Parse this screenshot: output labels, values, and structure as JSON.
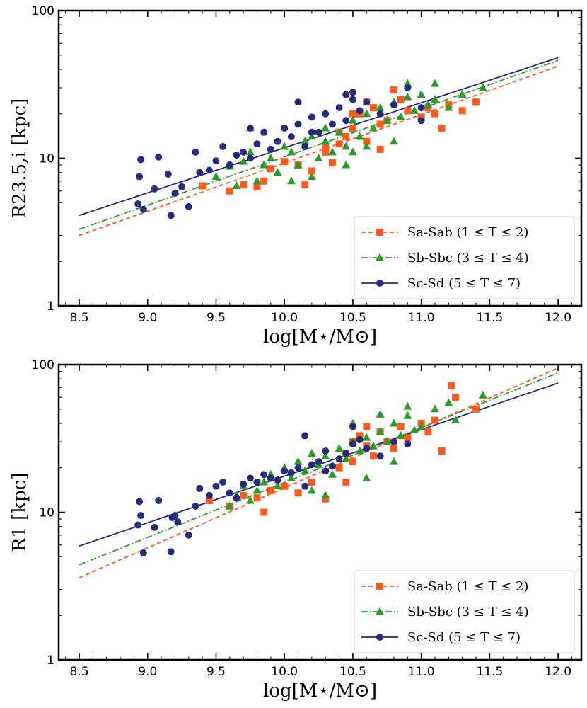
{
  "colors": {
    "sa": "#ff5a1f",
    "sb": "#2e9a2e",
    "sc": "#262b7a"
  },
  "legend": [
    {
      "key": "sa",
      "name": "Sa-Sab (1 ≤ T ≤ 2)",
      "marker": "square",
      "dash": "6,4"
    },
    {
      "key": "sb",
      "name": "Sb-Sbc (3 ≤ T ≤ 4)",
      "marker": "triangle",
      "dash": "9,3,2,3"
    },
    {
      "key": "sc",
      "name": "Sc-Sd (5 ≤ T ≤ 7)",
      "marker": "circle",
      "dash": ""
    }
  ],
  "chart_data": [
    {
      "type": "scatter",
      "ylabel": "R23.5,i [kpc]",
      "xlabel": "log[M⋆/M⊙]",
      "xlim": [
        8.35,
        12.17
      ],
      "ylim": [
        1,
        100
      ],
      "yscale": "log",
      "xticks": [
        8.5,
        9.0,
        9.5,
        10.0,
        10.5,
        11.0,
        11.5,
        12.0
      ],
      "xtick_labels": [
        "8.5",
        "9.0",
        "9.5",
        "10.0",
        "10.5",
        "11.0",
        "11.5",
        "12.0"
      ],
      "yticks": [
        1,
        10,
        100
      ],
      "ytick_labels": [
        "1",
        "10",
        "100"
      ],
      "legend_position": "lower-right",
      "fits": {
        "sa": [
          [
            8.5,
            3.0
          ],
          [
            12.0,
            42
          ]
        ],
        "sb": [
          [
            8.5,
            3.3
          ],
          [
            12.0,
            46
          ]
        ],
        "sc": [
          [
            8.5,
            4.1
          ],
          [
            12.0,
            48
          ]
        ]
      },
      "series": [
        {
          "key": "sa",
          "points": [
            [
              9.4,
              6.5
            ],
            [
              9.6,
              6.0
            ],
            [
              9.7,
              6.6
            ],
            [
              9.8,
              6.4
            ],
            [
              9.85,
              7.0
            ],
            [
              9.9,
              8.5
            ],
            [
              10.0,
              9.5
            ],
            [
              10.1,
              9.0
            ],
            [
              10.15,
              6.6
            ],
            [
              10.2,
              8.2
            ],
            [
              10.3,
              11.0
            ],
            [
              10.35,
              9.3
            ],
            [
              10.4,
              12.5
            ],
            [
              10.45,
              14.0
            ],
            [
              10.5,
              16.0
            ],
            [
              10.55,
              20.0
            ],
            [
              10.6,
              13.0
            ],
            [
              10.65,
              22.0
            ],
            [
              10.7,
              11.5
            ],
            [
              10.75,
              18.0
            ],
            [
              10.8,
              29.0
            ],
            [
              10.85,
              25.0
            ],
            [
              10.9,
              21.0
            ],
            [
              11.0,
              19.0
            ],
            [
              11.05,
              22.0
            ],
            [
              11.1,
              20.0
            ],
            [
              11.15,
              16.0
            ],
            [
              11.2,
              23.0
            ],
            [
              11.3,
              21.0
            ],
            [
              11.4,
              24.0
            ],
            [
              10.6,
              24.0
            ],
            [
              10.5,
              20.0
            ],
            [
              10.4,
              15.0
            ],
            [
              10.7,
              17.0
            ],
            [
              10.3,
              12.0
            ]
          ]
        },
        {
          "key": "sb",
          "points": [
            [
              9.5,
              7.5
            ],
            [
              9.6,
              8.8
            ],
            [
              9.65,
              6.5
            ],
            [
              9.7,
              9.5
            ],
            [
              9.75,
              11.0
            ],
            [
              9.8,
              7.0
            ],
            [
              9.85,
              9.0
            ],
            [
              9.9,
              10.0
            ],
            [
              9.95,
              8.0
            ],
            [
              10.0,
              12.0
            ],
            [
              10.05,
              11.0
            ],
            [
              10.1,
              9.0
            ],
            [
              10.15,
              13.0
            ],
            [
              10.2,
              14.0
            ],
            [
              10.25,
              10.0
            ],
            [
              10.3,
              16.0
            ],
            [
              10.35,
              11.0
            ],
            [
              10.4,
              15.0
            ],
            [
              10.45,
              12.0
            ],
            [
              10.5,
              18.0
            ],
            [
              10.55,
              14.0
            ],
            [
              10.6,
              20.0
            ],
            [
              10.65,
              16.0
            ],
            [
              10.7,
              22.0
            ],
            [
              10.75,
              18.0
            ],
            [
              10.8,
              24.0
            ],
            [
              10.85,
              19.0
            ],
            [
              10.9,
              26.0
            ],
            [
              10.95,
              21.0
            ],
            [
              11.0,
              27.0
            ],
            [
              11.05,
              23.0
            ],
            [
              11.1,
              25.0
            ],
            [
              11.2,
              22.0
            ],
            [
              11.3,
              27.0
            ],
            [
              11.45,
              30.0
            ],
            [
              9.75,
              16.0
            ],
            [
              10.05,
              7.0
            ],
            [
              10.2,
              7.5
            ],
            [
              10.45,
              9.0
            ],
            [
              10.6,
              12.0
            ],
            [
              10.9,
              32.0
            ],
            [
              11.1,
              32.0
            ],
            [
              10.3,
              13.0
            ],
            [
              10.5,
              11.0
            ],
            [
              10.8,
              13.0
            ]
          ]
        },
        {
          "key": "sc",
          "points": [
            [
              8.93,
              4.9
            ],
            [
              8.95,
              9.8
            ],
            [
              8.97,
              4.5
            ],
            [
              8.94,
              7.5
            ],
            [
              9.05,
              6.2
            ],
            [
              9.08,
              10.2
            ],
            [
              9.15,
              7.8
            ],
            [
              9.2,
              5.8
            ],
            [
              9.17,
              4.1
            ],
            [
              9.25,
              6.4
            ],
            [
              9.3,
              4.7
            ],
            [
              9.35,
              11.0
            ],
            [
              9.38,
              8.0
            ],
            [
              9.45,
              8.3
            ],
            [
              9.5,
              9.6
            ],
            [
              9.55,
              12.0
            ],
            [
              9.6,
              9.0
            ],
            [
              9.65,
              10.5
            ],
            [
              9.7,
              11.0
            ],
            [
              9.75,
              10.0
            ],
            [
              9.8,
              12.5
            ],
            [
              9.85,
              15.0
            ],
            [
              9.9,
              11.5
            ],
            [
              9.95,
              13.0
            ],
            [
              10.0,
              16.0
            ],
            [
              10.05,
              14.0
            ],
            [
              10.1,
              17.0
            ],
            [
              10.15,
              12.0
            ],
            [
              10.2,
              19.0
            ],
            [
              10.25,
              15.0
            ],
            [
              10.3,
              20.0
            ],
            [
              10.35,
              17.0
            ],
            [
              10.4,
              22.0
            ],
            [
              10.45,
              18.0
            ],
            [
              10.5,
              25.0
            ],
            [
              10.55,
              21.0
            ],
            [
              10.6,
              24.0
            ],
            [
              10.7,
              20.0
            ],
            [
              10.8,
              23.0
            ],
            [
              10.9,
              30.0
            ],
            [
              11.0,
              22.0
            ],
            [
              10.45,
              27.0
            ],
            [
              10.5,
              28.0
            ],
            [
              9.75,
              16.0
            ],
            [
              10.2,
              15.0
            ],
            [
              11.0,
              18.0
            ],
            [
              10.1,
              24.0
            ]
          ]
        }
      ]
    },
    {
      "type": "scatter",
      "ylabel": "R1 [kpc]",
      "xlabel": "log[M⋆/M⊙]",
      "xlim": [
        8.35,
        12.17
      ],
      "ylim": [
        1,
        100
      ],
      "yscale": "log",
      "xticks": [
        8.5,
        9.0,
        9.5,
        10.0,
        10.5,
        11.0,
        11.5,
        12.0
      ],
      "xtick_labels": [
        "8.5",
        "9.0",
        "9.5",
        "10.0",
        "10.5",
        "11.0",
        "11.5",
        "12.0"
      ],
      "yticks": [
        1,
        10,
        100
      ],
      "ytick_labels": [
        "1",
        "10",
        "100"
      ],
      "legend_position": "lower-right",
      "fits": {
        "sa": [
          [
            8.5,
            3.6
          ],
          [
            12.0,
            95
          ]
        ],
        "sb": [
          [
            8.5,
            4.4
          ],
          [
            12.0,
            88
          ]
        ],
        "sc": [
          [
            8.5,
            5.9
          ],
          [
            12.0,
            75
          ]
        ]
      },
      "series": [
        {
          "key": "sa",
          "points": [
            [
              9.45,
              12.0
            ],
            [
              9.6,
              11.0
            ],
            [
              9.7,
              13.0
            ],
            [
              9.8,
              12.5
            ],
            [
              9.85,
              10.0
            ],
            [
              9.9,
              14.0
            ],
            [
              10.0,
              15.0
            ],
            [
              10.1,
              13.5
            ],
            [
              10.2,
              16.0
            ],
            [
              10.3,
              12.3
            ],
            [
              10.4,
              20.0
            ],
            [
              10.45,
              25.0
            ],
            [
              10.5,
              22.0
            ],
            [
              10.55,
              33.0
            ],
            [
              10.6,
              28.0
            ],
            [
              10.65,
              24.0
            ],
            [
              10.7,
              35.0
            ],
            [
              10.75,
              30.0
            ],
            [
              10.8,
              27.0
            ],
            [
              10.85,
              38.0
            ],
            [
              10.9,
              32.0
            ],
            [
              11.0,
              40.0
            ],
            [
              11.05,
              35.0
            ],
            [
              11.1,
              42.0
            ],
            [
              11.15,
              26.0
            ],
            [
              11.22,
              72.0
            ],
            [
              11.25,
              60.0
            ],
            [
              11.4,
              50.0
            ],
            [
              10.6,
              38.0
            ],
            [
              10.5,
              30.0
            ],
            [
              10.45,
              16.0
            ]
          ]
        },
        {
          "key": "sb",
          "points": [
            [
              9.6,
              11.0
            ],
            [
              9.65,
              13.0
            ],
            [
              9.7,
              15.0
            ],
            [
              9.75,
              12.0
            ],
            [
              9.8,
              14.0
            ],
            [
              9.85,
              16.0
            ],
            [
              9.9,
              18.0
            ],
            [
              9.95,
              15.0
            ],
            [
              10.0,
              20.0
            ],
            [
              10.05,
              17.0
            ],
            [
              10.1,
              22.0
            ],
            [
              10.15,
              19.0
            ],
            [
              10.2,
              25.0
            ],
            [
              10.25,
              21.0
            ],
            [
              10.3,
              24.0
            ],
            [
              10.35,
              18.0
            ],
            [
              10.4,
              27.0
            ],
            [
              10.45,
              23.0
            ],
            [
              10.5,
              30.0
            ],
            [
              10.55,
              26.0
            ],
            [
              10.6,
              32.0
            ],
            [
              10.65,
              28.0
            ],
            [
              10.7,
              35.0
            ],
            [
              10.75,
              30.0
            ],
            [
              10.8,
              40.0
            ],
            [
              10.85,
              33.0
            ],
            [
              10.9,
              45.0
            ],
            [
              10.95,
              36.0
            ],
            [
              11.0,
              38.0
            ],
            [
              11.1,
              50.0
            ],
            [
              11.2,
              55.0
            ],
            [
              11.25,
              42.0
            ],
            [
              11.45,
              62.0
            ],
            [
              10.5,
              40.0
            ],
            [
              10.7,
              46.0
            ],
            [
              10.3,
              13.0
            ],
            [
              10.2,
              14.0
            ],
            [
              10.6,
              17.0
            ],
            [
              10.8,
              22.0
            ],
            [
              10.9,
              52.0
            ]
          ]
        },
        {
          "key": "sc",
          "points": [
            [
              8.94,
              11.8
            ],
            [
              8.95,
              9.5
            ],
            [
              8.93,
              8.2
            ],
            [
              8.97,
              5.3
            ],
            [
              9.05,
              7.9
            ],
            [
              9.08,
              12.0
            ],
            [
              9.17,
              5.4
            ],
            [
              9.18,
              9.2
            ],
            [
              9.2,
              9.5
            ],
            [
              9.22,
              8.6
            ],
            [
              9.3,
              7.0
            ],
            [
              9.35,
              11.0
            ],
            [
              9.38,
              14.5
            ],
            [
              9.45,
              13.0
            ],
            [
              9.5,
              15.0
            ],
            [
              9.55,
              16.0
            ],
            [
              9.6,
              13.5
            ],
            [
              9.65,
              12.5
            ],
            [
              9.7,
              15.5
            ],
            [
              9.75,
              17.0
            ],
            [
              9.8,
              16.0
            ],
            [
              9.85,
              18.0
            ],
            [
              9.9,
              17.0
            ],
            [
              9.95,
              16.5
            ],
            [
              10.0,
              19.0
            ],
            [
              10.05,
              18.5
            ],
            [
              10.1,
              20.0
            ],
            [
              10.15,
              15.0
            ],
            [
              10.2,
              21.0
            ],
            [
              10.25,
              22.0
            ],
            [
              10.3,
              19.0
            ],
            [
              10.35,
              20.5
            ],
            [
              10.4,
              23.0
            ],
            [
              10.45,
              25.0
            ],
            [
              10.5,
              29.0
            ],
            [
              10.55,
              31.0
            ],
            [
              10.6,
              27.0
            ],
            [
              10.7,
              24.0
            ],
            [
              10.8,
              30.0
            ],
            [
              10.9,
              29.0
            ],
            [
              10.5,
              38.0
            ],
            [
              10.15,
              33.0
            ],
            [
              10.3,
              26.0
            ]
          ]
        }
      ]
    }
  ]
}
